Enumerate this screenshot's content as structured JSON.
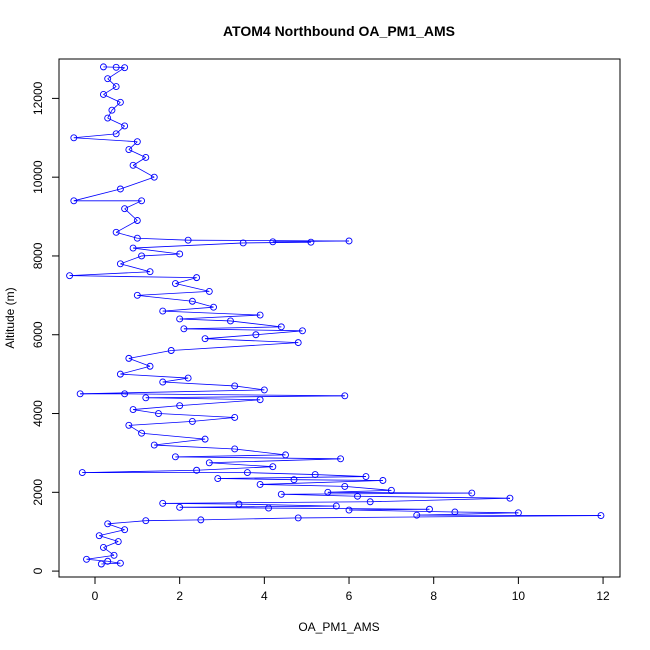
{
  "chart_data": {
    "type": "scatter",
    "title": "ATOM4 Northbound OA_PM1_AMS",
    "xlabel": "OA_PM1_AMS",
    "ylabel": "Altitude (m)",
    "xlim": [
      -0.85,
      12.4
    ],
    "ylim": [
      -150,
      13000
    ],
    "x_ticks": [
      0,
      2,
      4,
      6,
      8,
      10,
      12
    ],
    "y_ticks": [
      0,
      2000,
      4000,
      6000,
      8000,
      10000,
      12000
    ],
    "grid": false,
    "legend": "none",
    "series": [
      {
        "color": "#0000ff",
        "mode": "lines+markers",
        "marker": "open-circle",
        "points": [
          [
            0.15,
            180
          ],
          [
            0.6,
            200
          ],
          [
            0.3,
            250
          ],
          [
            0.45,
            400
          ],
          [
            0.2,
            600
          ],
          [
            0.55,
            750
          ],
          [
            0.1,
            900
          ],
          [
            0.7,
            1050
          ],
          [
            0.3,
            1200
          ],
          [
            1.2,
            1280
          ],
          [
            2.5,
            1300
          ],
          [
            4.8,
            1350
          ],
          [
            7.6,
            1420
          ],
          [
            10.0,
            1480
          ],
          [
            11.95,
            1410
          ],
          [
            8.5,
            1500
          ],
          [
            6.0,
            1550
          ],
          [
            7.9,
            1570
          ],
          [
            4.1,
            1600
          ],
          [
            2.0,
            1620
          ],
          [
            5.7,
            1650
          ],
          [
            3.4,
            1700
          ],
          [
            1.6,
            1720
          ],
          [
            6.5,
            1760
          ],
          [
            9.8,
            1850
          ],
          [
            8.9,
            1980
          ],
          [
            6.2,
            1900
          ],
          [
            4.4,
            1950
          ],
          [
            5.5,
            2000
          ],
          [
            7.0,
            2050
          ],
          [
            5.9,
            2150
          ],
          [
            3.9,
            2200
          ],
          [
            6.8,
            2300
          ],
          [
            2.9,
            2350
          ],
          [
            4.7,
            2320
          ],
          [
            6.4,
            2400
          ],
          [
            5.2,
            2450
          ],
          [
            3.6,
            2500
          ],
          [
            2.4,
            2560
          ],
          [
            4.2,
            2650
          ],
          [
            2.7,
            2750
          ],
          [
            5.8,
            2850
          ],
          [
            1.9,
            2900
          ],
          [
            4.5,
            2950
          ],
          [
            3.3,
            3100
          ],
          [
            1.4,
            3200
          ],
          [
            2.6,
            3350
          ],
          [
            1.1,
            3500
          ],
          [
            0.8,
            3700
          ],
          [
            2.3,
            3800
          ],
          [
            3.3,
            3900
          ],
          [
            1.5,
            4000
          ],
          [
            0.9,
            4100
          ],
          [
            2.0,
            4200
          ],
          [
            3.9,
            4350
          ],
          [
            1.2,
            4400
          ],
          [
            5.9,
            4450
          ],
          [
            0.7,
            4500
          ],
          [
            4.0,
            4600
          ],
          [
            3.3,
            4700
          ],
          [
            1.6,
            4800
          ],
          [
            2.2,
            4900
          ],
          [
            0.6,
            5000
          ],
          [
            1.3,
            5200
          ],
          [
            0.8,
            5400
          ],
          [
            1.8,
            5600
          ],
          [
            4.8,
            5800
          ],
          [
            2.6,
            5900
          ],
          [
            3.8,
            6000
          ],
          [
            4.9,
            6100
          ],
          [
            2.1,
            6150
          ],
          [
            4.4,
            6200
          ],
          [
            3.2,
            6350
          ],
          [
            2.0,
            6400
          ],
          [
            3.9,
            6500
          ],
          [
            1.6,
            6600
          ],
          [
            2.8,
            6700
          ],
          [
            2.3,
            6850
          ],
          [
            1.0,
            7000
          ],
          [
            2.7,
            7100
          ],
          [
            1.9,
            7300
          ],
          [
            2.4,
            7450
          ],
          [
            1.3,
            7600
          ],
          [
            0.6,
            7800
          ],
          [
            1.1,
            8000
          ],
          [
            2.0,
            8050
          ],
          [
            0.9,
            8200
          ],
          [
            3.5,
            8330
          ],
          [
            5.1,
            8350
          ],
          [
            6.0,
            8380
          ],
          [
            4.2,
            8360
          ],
          [
            2.2,
            8400
          ],
          [
            1.0,
            8450
          ],
          [
            0.5,
            8600
          ],
          [
            1.0,
            8900
          ],
          [
            0.7,
            9200
          ],
          [
            1.1,
            9400
          ],
          [
            0.6,
            9700
          ],
          [
            1.4,
            10000
          ],
          [
            0.9,
            10300
          ],
          [
            1.2,
            10500
          ],
          [
            0.8,
            10700
          ],
          [
            1.0,
            10900
          ],
          [
            0.5,
            11100
          ],
          [
            0.7,
            11300
          ],
          [
            0.3,
            11500
          ],
          [
            0.4,
            11700
          ],
          [
            0.6,
            11900
          ],
          [
            0.2,
            12100
          ],
          [
            0.5,
            12300
          ],
          [
            0.3,
            12500
          ],
          [
            0.2,
            12800
          ],
          [
            0.5,
            12790
          ],
          [
            0.7,
            12780
          ],
          [
            -0.6,
            7500
          ],
          [
            -0.5,
            9400
          ],
          [
            -0.5,
            11000
          ],
          [
            -0.3,
            2500
          ],
          [
            -0.35,
            4500
          ],
          [
            -0.2,
            300
          ]
        ]
      }
    ]
  }
}
